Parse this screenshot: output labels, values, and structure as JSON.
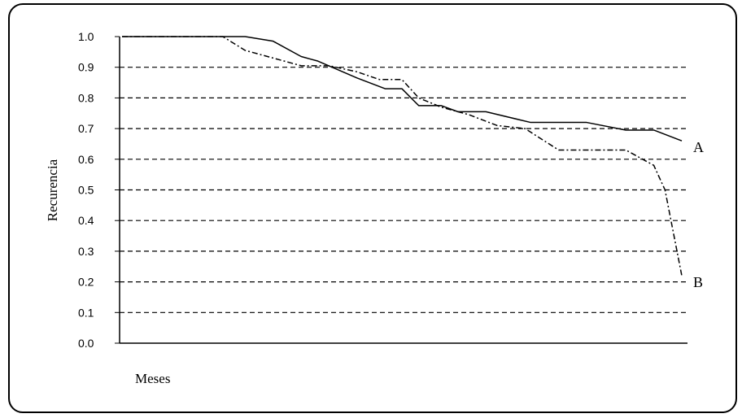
{
  "chart_data": {
    "type": "line",
    "ylabel": "Recurencia",
    "xlabel": "Meses",
    "ylim": [
      0,
      1
    ],
    "yticks": [
      "0.0",
      "0.1",
      "0.2",
      "0.3",
      "0.4",
      "0.5",
      "0.6",
      "0.7",
      "0.8",
      "0.9",
      "1.0"
    ],
    "grid": "horizontal dashed",
    "series": [
      {
        "name": "A",
        "style": "solid",
        "x": [
          0,
          18,
          22,
          27,
          32,
          35,
          42,
          47,
          50,
          53,
          57,
          60,
          65,
          73,
          78,
          83,
          90,
          95,
          100
        ],
        "values": [
          1.0,
          1.0,
          1.0,
          0.985,
          0.935,
          0.92,
          0.865,
          0.83,
          0.83,
          0.775,
          0.775,
          0.755,
          0.755,
          0.72,
          0.72,
          0.72,
          0.695,
          0.695,
          0.66
        ]
      },
      {
        "name": "B",
        "style": "dash-dot",
        "x": [
          0,
          14,
          18,
          22,
          27,
          32,
          37,
          42,
          46,
          50,
          53,
          57,
          62,
          67,
          72,
          78,
          84,
          90,
          95,
          97,
          100
        ],
        "values": [
          1.0,
          1.0,
          1.0,
          0.955,
          0.93,
          0.905,
          0.905,
          0.885,
          0.86,
          0.86,
          0.8,
          0.77,
          0.745,
          0.71,
          0.7,
          0.63,
          0.63,
          0.63,
          0.58,
          0.5,
          0.22
        ]
      }
    ]
  }
}
